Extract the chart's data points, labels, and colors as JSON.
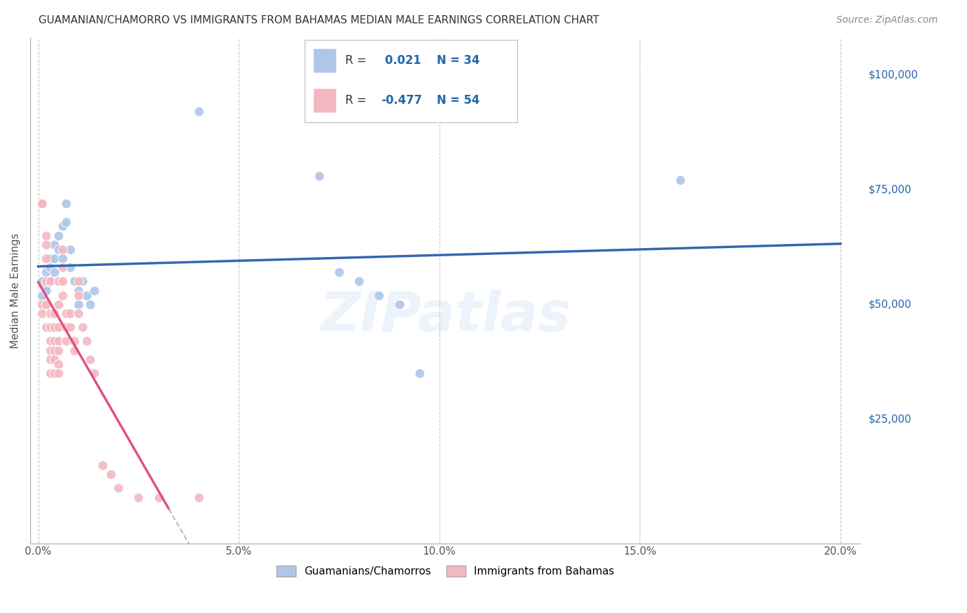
{
  "title": "GUAMANIAN/CHAMORRO VS IMMIGRANTS FROM BAHAMAS MEDIAN MALE EARNINGS CORRELATION CHART",
  "source": "Source: ZipAtlas.com",
  "ylabel": "Median Male Earnings",
  "xlabel_ticks": [
    "0.0%",
    "5.0%",
    "10.0%",
    "15.0%",
    "20.0%"
  ],
  "xlabel_vals": [
    0.0,
    0.05,
    0.1,
    0.15,
    0.2
  ],
  "ylabel_ticks": [
    "$25,000",
    "$50,000",
    "$75,000",
    "$100,000"
  ],
  "ylabel_vals": [
    25000,
    50000,
    75000,
    100000
  ],
  "xlim": [
    -0.002,
    0.205
  ],
  "ylim": [
    -2000,
    108000
  ],
  "legend1_label": "Guamanians/Chamorros",
  "legend2_label": "Immigrants from Bahamas",
  "R_blue": 0.021,
  "N_blue": 34,
  "R_pink": -0.477,
  "N_pink": 54,
  "blue_color": "#aec6e8",
  "pink_color": "#f4b8c1",
  "blue_line_color": "#3367b0",
  "pink_line_color": "#e05080",
  "blue_scatter": [
    [
      0.001,
      55000
    ],
    [
      0.001,
      52000
    ],
    [
      0.002,
      57000
    ],
    [
      0.002,
      54000
    ],
    [
      0.002,
      53000
    ],
    [
      0.003,
      60000
    ],
    [
      0.003,
      58000
    ],
    [
      0.003,
      55000
    ],
    [
      0.004,
      63000
    ],
    [
      0.004,
      60000
    ],
    [
      0.004,
      57000
    ],
    [
      0.005,
      65000
    ],
    [
      0.005,
      62000
    ],
    [
      0.006,
      67000
    ],
    [
      0.006,
      60000
    ],
    [
      0.007,
      72000
    ],
    [
      0.007,
      68000
    ],
    [
      0.008,
      62000
    ],
    [
      0.008,
      58000
    ],
    [
      0.009,
      55000
    ],
    [
      0.01,
      53000
    ],
    [
      0.01,
      50000
    ],
    [
      0.011,
      55000
    ],
    [
      0.012,
      52000
    ],
    [
      0.013,
      50000
    ],
    [
      0.014,
      53000
    ],
    [
      0.04,
      92000
    ],
    [
      0.07,
      78000
    ],
    [
      0.075,
      57000
    ],
    [
      0.08,
      55000
    ],
    [
      0.085,
      52000
    ],
    [
      0.09,
      50000
    ],
    [
      0.095,
      35000
    ],
    [
      0.16,
      77000
    ]
  ],
  "pink_scatter": [
    [
      0.001,
      72000
    ],
    [
      0.001,
      72000
    ],
    [
      0.001,
      50000
    ],
    [
      0.001,
      48000
    ],
    [
      0.002,
      65000
    ],
    [
      0.002,
      63000
    ],
    [
      0.002,
      60000
    ],
    [
      0.002,
      55000
    ],
    [
      0.002,
      50000
    ],
    [
      0.002,
      45000
    ],
    [
      0.003,
      55000
    ],
    [
      0.003,
      48000
    ],
    [
      0.003,
      45000
    ],
    [
      0.003,
      42000
    ],
    [
      0.003,
      40000
    ],
    [
      0.003,
      38000
    ],
    [
      0.003,
      35000
    ],
    [
      0.004,
      48000
    ],
    [
      0.004,
      45000
    ],
    [
      0.004,
      42000
    ],
    [
      0.004,
      40000
    ],
    [
      0.004,
      38000
    ],
    [
      0.004,
      35000
    ],
    [
      0.005,
      55000
    ],
    [
      0.005,
      50000
    ],
    [
      0.005,
      45000
    ],
    [
      0.005,
      42000
    ],
    [
      0.005,
      40000
    ],
    [
      0.005,
      37000
    ],
    [
      0.005,
      35000
    ],
    [
      0.006,
      62000
    ],
    [
      0.006,
      58000
    ],
    [
      0.006,
      55000
    ],
    [
      0.006,
      52000
    ],
    [
      0.007,
      48000
    ],
    [
      0.007,
      45000
    ],
    [
      0.007,
      42000
    ],
    [
      0.008,
      48000
    ],
    [
      0.008,
      45000
    ],
    [
      0.009,
      42000
    ],
    [
      0.009,
      40000
    ],
    [
      0.01,
      55000
    ],
    [
      0.01,
      52000
    ],
    [
      0.01,
      48000
    ],
    [
      0.011,
      45000
    ],
    [
      0.012,
      42000
    ],
    [
      0.013,
      38000
    ],
    [
      0.014,
      35000
    ],
    [
      0.016,
      15000
    ],
    [
      0.018,
      13000
    ],
    [
      0.02,
      10000
    ],
    [
      0.025,
      8000
    ],
    [
      0.03,
      8000
    ],
    [
      0.04,
      8000
    ]
  ],
  "watermark": "ZIPatlas",
  "background_color": "#ffffff",
  "grid_color": "#c8c8c8"
}
